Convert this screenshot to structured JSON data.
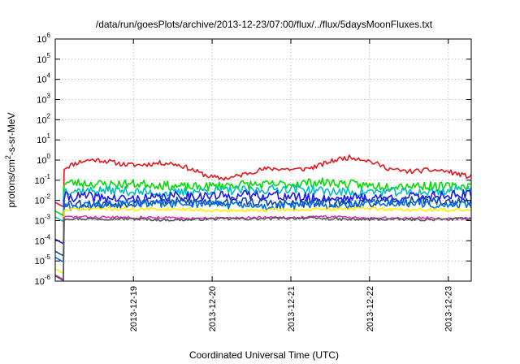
{
  "chart_data": {
    "type": "line",
    "title": "/data/run/goesPlots/archive/2013-12-23/07:00/flux/../flux/5daysMoonFluxes.txt",
    "xlabel": "Coordinated Universal Time (UTC)",
    "ylabel_parts": {
      "pre": "protons/cm",
      "sup": "2",
      "post": "-s-sr-MeV"
    },
    "yscale": "log",
    "ylim": [
      1e-06,
      1000000.0
    ],
    "xlim": [
      "2013-12-18T00:10",
      "2013-12-23T07:00"
    ],
    "y_ticks": [
      {
        "value": 1e-06,
        "base": "10",
        "exp": "-6"
      },
      {
        "value": 1e-05,
        "base": "10",
        "exp": "-5"
      },
      {
        "value": 0.0001,
        "base": "10",
        "exp": "-4"
      },
      {
        "value": 0.001,
        "base": "10",
        "exp": "-3"
      },
      {
        "value": 0.01,
        "base": "10",
        "exp": "-2"
      },
      {
        "value": 0.1,
        "base": "10",
        "exp": "-1"
      },
      {
        "value": 1.0,
        "base": "10",
        "exp": "0"
      },
      {
        "value": 10.0,
        "base": "10",
        "exp": "1"
      },
      {
        "value": 100.0,
        "base": "10",
        "exp": "2"
      },
      {
        "value": 1000.0,
        "base": "10",
        "exp": "3"
      },
      {
        "value": 10000.0,
        "base": "10",
        "exp": "4"
      },
      {
        "value": 100000.0,
        "base": "10",
        "exp": "5"
      },
      {
        "value": 1000000.0,
        "base": "10",
        "exp": "6"
      }
    ],
    "x_ticks": [
      {
        "value": "2013-12-19T00:00",
        "label": "2013-12-19"
      },
      {
        "value": "2013-12-20T00:00",
        "label": "2013-12-20"
      },
      {
        "value": "2013-12-21T00:00",
        "label": "2013-12-21"
      },
      {
        "value": "2013-12-22T00:00",
        "label": "2013-12-22"
      },
      {
        "value": "2013-12-23T00:00",
        "label": "2013-12-23"
      }
    ],
    "grid": true,
    "legend": "none",
    "series": [
      {
        "color": "#e8161e",
        "start": 0.008,
        "base": 0.4,
        "noise": 0.12,
        "swing": 0.35,
        "seed": 11
      },
      {
        "color": "#00dd00",
        "start": 0.003,
        "base": 0.06,
        "noise": 0.22,
        "swing": 0.08,
        "seed": 23
      },
      {
        "color": "#00c0b8",
        "start": 0.0015,
        "base": 0.03,
        "noise": 0.22,
        "swing": 0.08,
        "seed": 37
      },
      {
        "color": "#1a1aee",
        "start": 0.00012,
        "base": 0.015,
        "noise": 0.25,
        "swing": 0.08,
        "seed": 41
      },
      {
        "color": "#1144aa",
        "start": 3e-05,
        "base": 0.008,
        "noise": 0.22,
        "swing": 0.06,
        "seed": 53
      },
      {
        "color": "#0070e0",
        "start": 1.5e-05,
        "base": 0.006,
        "noise": 0.2,
        "swing": 0.06,
        "seed": 61
      },
      {
        "color": "#ffee00",
        "start": 4e-06,
        "base": 0.0035,
        "noise": 0.08,
        "swing": 0.04,
        "seed": 71
      },
      {
        "color": "#dd33bb",
        "start": 2e-06,
        "base": 0.0014,
        "noise": 0.06,
        "swing": 0.03,
        "seed": 83
      },
      {
        "color": "#555555",
        "start": 1.8e-06,
        "base": 0.0012,
        "noise": 0.06,
        "swing": 0.03,
        "seed": 97
      }
    ]
  }
}
